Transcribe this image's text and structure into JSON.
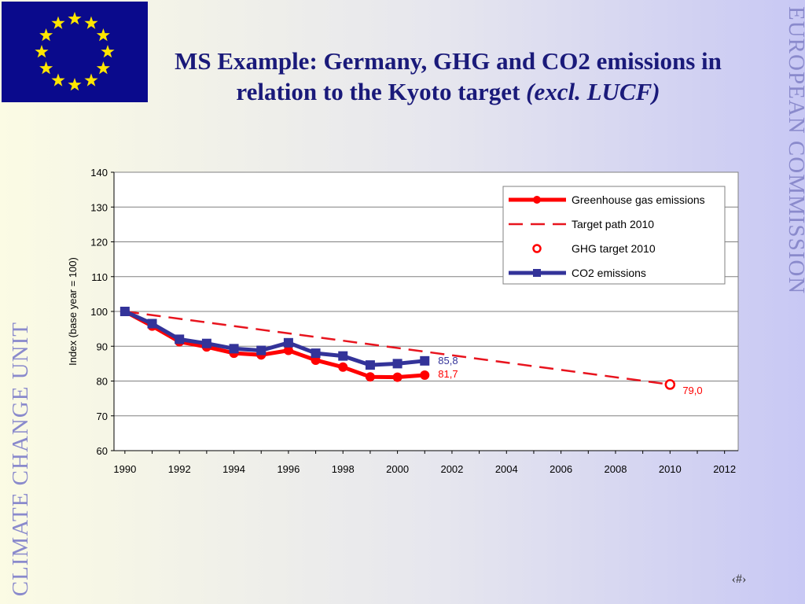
{
  "slide": {
    "title_main": "MS Example: Germany, GHG and CO2 emissions in relation to the Kyoto target",
    "title_italic": "(excl. LUCF)",
    "side_right": "EUROPEAN COMMISSION",
    "side_left": "CLIMATE CHANGE UNIT",
    "page_number": "‹#›"
  },
  "colors": {
    "ghg": "#ff0000",
    "target": "#e8141e",
    "co2": "#333399",
    "flag_blue": "#0a0a8c",
    "flag_star": "#ffe600"
  },
  "chart_data": {
    "type": "line",
    "title": "",
    "xlabel": "",
    "ylabel": "Index (base year = 100)",
    "xlim": [
      1990,
      2012
    ],
    "ylim": [
      60,
      140
    ],
    "xticks": [
      "1990",
      "1992",
      "1994",
      "1996",
      "1998",
      "2000",
      "2002",
      "2004",
      "2006",
      "2008",
      "2010",
      "2012"
    ],
    "yticks": [
      "60",
      "70",
      "80",
      "90",
      "100",
      "110",
      "120",
      "130",
      "140"
    ],
    "grid": true,
    "legend_position": "top-right",
    "series": [
      {
        "name": "Greenhouse gas emissions",
        "x": [
          1990,
          1991,
          1992,
          1993,
          1994,
          1995,
          1996,
          1997,
          1998,
          1999,
          2000,
          2001
        ],
        "y": [
          100,
          95.8,
          91.3,
          89.8,
          88,
          87.5,
          88.8,
          86,
          84,
          81.2,
          81.1,
          81.7
        ],
        "end_label": "81,7"
      },
      {
        "name": "Target path 2010",
        "x": [
          1990,
          2010
        ],
        "y": [
          100,
          79.0
        ]
      },
      {
        "name": "GHG target 2010",
        "x": [
          2010
        ],
        "y": [
          79.0
        ],
        "end_label": "79,0"
      },
      {
        "name": "CO2 emissions",
        "x": [
          1990,
          1991,
          1992,
          1993,
          1994,
          1995,
          1996,
          1997,
          1998,
          1999,
          2000,
          2001
        ],
        "y": [
          100,
          96.5,
          92,
          90.8,
          89.3,
          88.8,
          91,
          88,
          87.2,
          84.6,
          85,
          85.8
        ],
        "end_label": "85,8"
      }
    ]
  }
}
